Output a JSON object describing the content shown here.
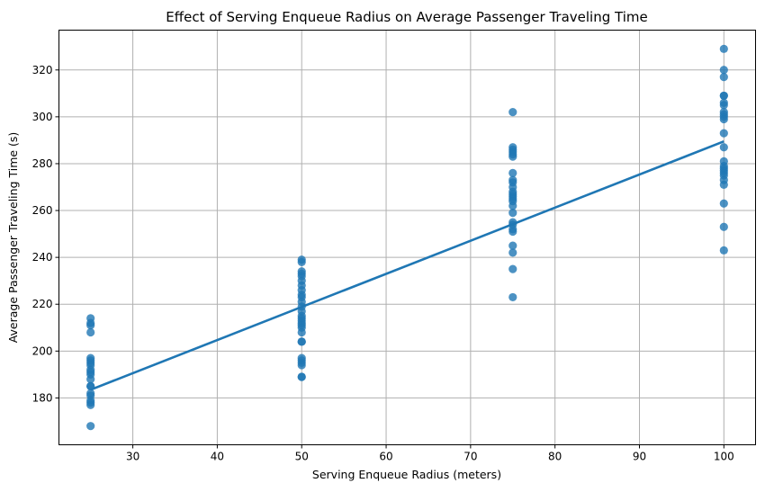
{
  "chart_data": {
    "type": "scatter",
    "title": "Effect of Serving Enqueue Radius on Average Passenger Traveling Time",
    "xlabel": "Serving Enqueue Radius (meters)",
    "ylabel": "Average Passenger Traveling Time (s)",
    "xlim": [
      21.25,
      103.75
    ],
    "ylim": [
      160,
      337
    ],
    "xticks": [
      30,
      40,
      50,
      60,
      70,
      80,
      90,
      100
    ],
    "yticks": [
      180,
      200,
      220,
      240,
      260,
      280,
      300,
      320
    ],
    "grid": true,
    "color": "#1f77b4",
    "series": [
      {
        "kind": "points",
        "x": [
          25,
          25,
          25,
          25,
          25,
          25,
          25,
          25,
          25,
          25,
          25,
          25,
          25,
          25,
          25,
          25,
          25,
          25,
          25,
          25,
          50,
          50,
          50,
          50,
          50,
          50,
          50,
          50,
          50,
          50,
          50,
          50,
          50,
          50,
          50,
          50,
          50,
          50,
          50,
          50,
          50,
          50,
          50,
          50,
          50,
          50,
          50,
          50,
          75,
          75,
          75,
          75,
          75,
          75,
          75,
          75,
          75,
          75,
          75,
          75,
          75,
          75,
          75,
          75,
          75,
          75,
          75,
          75,
          75,
          75,
          75,
          75,
          75,
          100,
          100,
          100,
          100,
          100,
          100,
          100,
          100,
          100,
          100,
          100,
          100,
          100,
          100,
          100,
          100,
          100,
          100,
          100,
          100,
          100,
          100,
          100,
          100
        ],
        "y": [
          214,
          212,
          211,
          208,
          197,
          196,
          195,
          194,
          192,
          191,
          190,
          188,
          185,
          185,
          182,
          181,
          179,
          178,
          177,
          168,
          239,
          238,
          234,
          233,
          232,
          230,
          228,
          226,
          224,
          223,
          221,
          219,
          217,
          215,
          214,
          213,
          212,
          211,
          210,
          208,
          204,
          204,
          197,
          196,
          195,
          194,
          189,
          189,
          302,
          287,
          286,
          284,
          283,
          276,
          273,
          272,
          270,
          267,
          266,
          265,
          264,
          262,
          259,
          255,
          254,
          252,
          251,
          245,
          242,
          235,
          223,
          285,
          268,
          329,
          320,
          317,
          309,
          309,
          306,
          305,
          302,
          300,
          299,
          293,
          287,
          281,
          279,
          278,
          277,
          276,
          275,
          273,
          271,
          263,
          253,
          243,
          301
        ]
      },
      {
        "kind": "fit-line",
        "x": [
          25,
          100
        ],
        "y": [
          183.5,
          289.5
        ]
      }
    ]
  }
}
